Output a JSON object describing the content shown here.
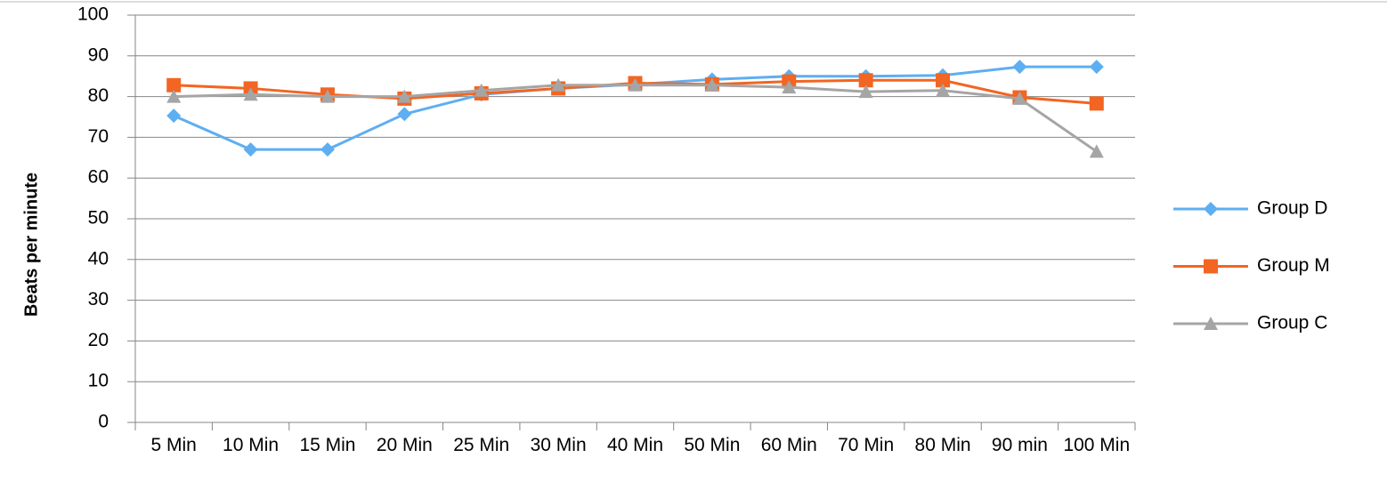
{
  "chart_data": {
    "type": "line",
    "ylabel": "Beats per minute",
    "categories": [
      "5 Min",
      "10 Min",
      "15 Min",
      "20 Min",
      "25 Min",
      "30 Min",
      "40 Min",
      "50 Min",
      "60 Min",
      "70 Min",
      "80 Min",
      "90 min",
      "100 Min"
    ],
    "series": [
      {
        "name": "Group D",
        "color": "#5eaef2",
        "marker": "diamond",
        "values": [
          75.3,
          67,
          67,
          75.7,
          80.5,
          82,
          83,
          84.2,
          85,
          85,
          85.2,
          87.3,
          87.3
        ]
      },
      {
        "name": "Group M",
        "color": "#f26522",
        "marker": "square",
        "values": [
          82.8,
          82,
          80.5,
          79.5,
          80.8,
          82,
          83.3,
          83,
          83.7,
          84,
          84,
          79.8,
          78.3
        ]
      },
      {
        "name": "Group C",
        "color": "#a5a5a5",
        "marker": "triangle",
        "values": [
          80,
          80.5,
          80,
          80,
          81.5,
          82.8,
          82.8,
          82.8,
          82.3,
          81.2,
          81.5,
          79.5,
          66.5
        ]
      }
    ],
    "ylim": [
      0,
      100
    ],
    "yticks": [
      0,
      10,
      20,
      30,
      40,
      50,
      60,
      70,
      80,
      90,
      100
    ],
    "grid": true,
    "legend": "right"
  }
}
